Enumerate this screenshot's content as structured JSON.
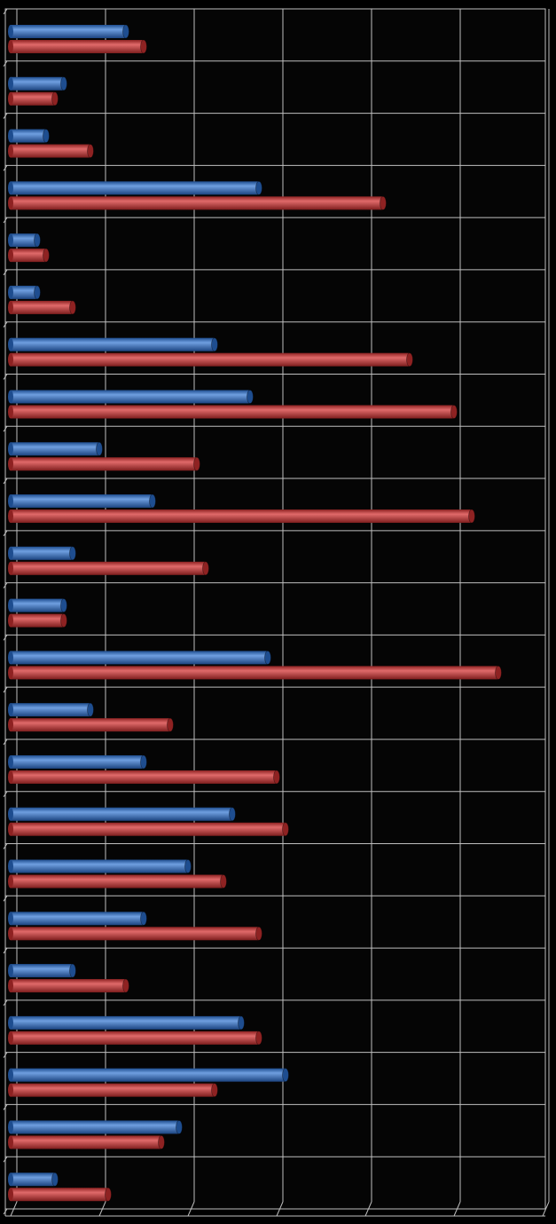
{
  "chart_data": {
    "type": "bar",
    "orientation": "horizontal",
    "style": "3d-cylinder",
    "grid": true,
    "legend": "none",
    "xlim": [
      0,
      30
    ],
    "x_gridline_step": 5,
    "category_count": 23,
    "series": [
      {
        "color": "#3a6fb8",
        "values": [
          6.5,
          3.0,
          2.0,
          14.0,
          1.5,
          1.5,
          11.5,
          13.5,
          5.0,
          8.0,
          3.5,
          3.0,
          14.5,
          4.5,
          7.5,
          12.5,
          10.0,
          7.5,
          3.5,
          13.0,
          15.5,
          9.5,
          2.5
        ]
      },
      {
        "color": "#c43c3c",
        "values": [
          7.5,
          2.5,
          4.5,
          21.0,
          2.0,
          3.5,
          22.5,
          25.0,
          10.5,
          26.0,
          11.0,
          3.0,
          27.5,
          9.0,
          15.0,
          15.5,
          12.0,
          14.0,
          6.5,
          14.0,
          11.5,
          8.5,
          5.5
        ]
      }
    ],
    "colors": {
      "background": "#000000",
      "plot_fill": "#050505",
      "grid": "#bfbfbf",
      "blue_dark": "#1e4d8f",
      "blue_light": "#6f9fe0",
      "red_dark": "#8e2222",
      "red_light": "#e06a6a"
    }
  }
}
